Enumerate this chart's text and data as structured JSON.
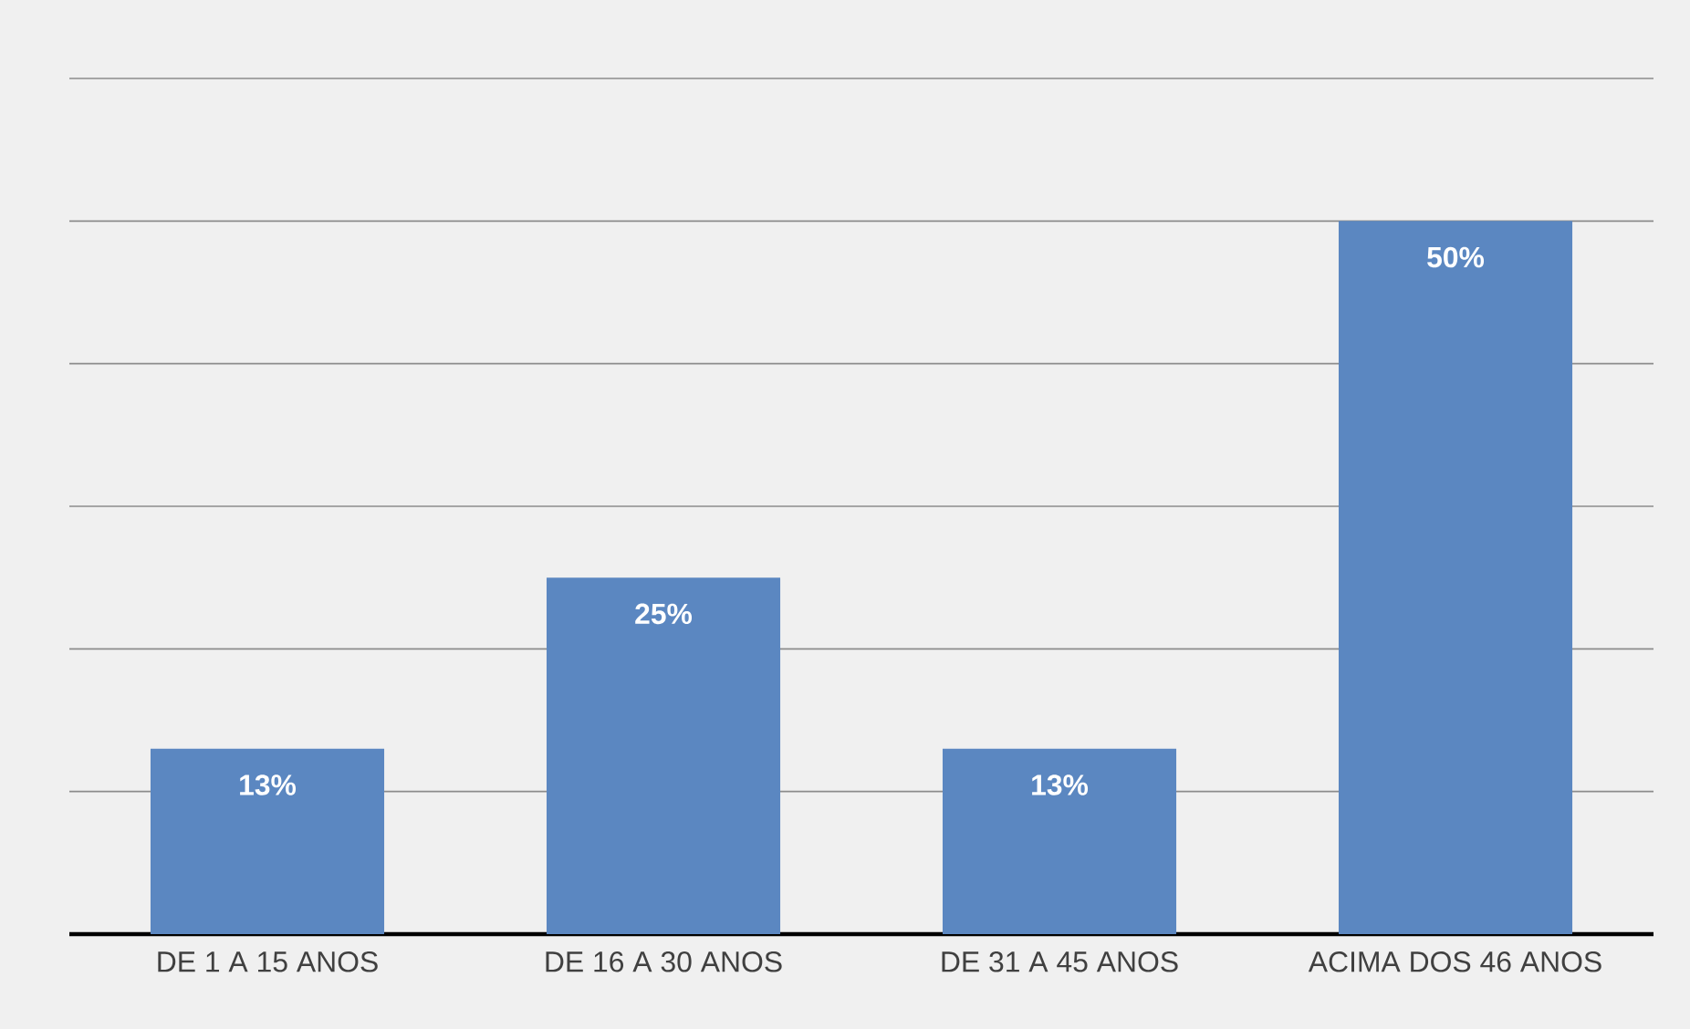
{
  "chart_data": {
    "type": "bar",
    "categories": [
      "DE 1 A 15 ANOS",
      "DE 16 A 30 ANOS",
      "DE 31 A 45 ANOS",
      "ACIMA DOS 46 ANOS"
    ],
    "values": [
      13,
      25,
      13,
      50
    ],
    "value_labels": [
      "13%",
      "25%",
      "13%",
      "50%"
    ],
    "color": "#5b87c1",
    "ylim": [
      0,
      60
    ],
    "yticks": [
      {
        "value": 10,
        "label": null
      },
      {
        "value": 20,
        "label": null
      },
      {
        "value": 30,
        "label": null
      },
      {
        "value": 40,
        "label": null
      },
      {
        "value": 50,
        "label": null
      },
      {
        "value": 60,
        "label": null
      }
    ],
    "grid": "y",
    "tick_labels": "x"
  }
}
